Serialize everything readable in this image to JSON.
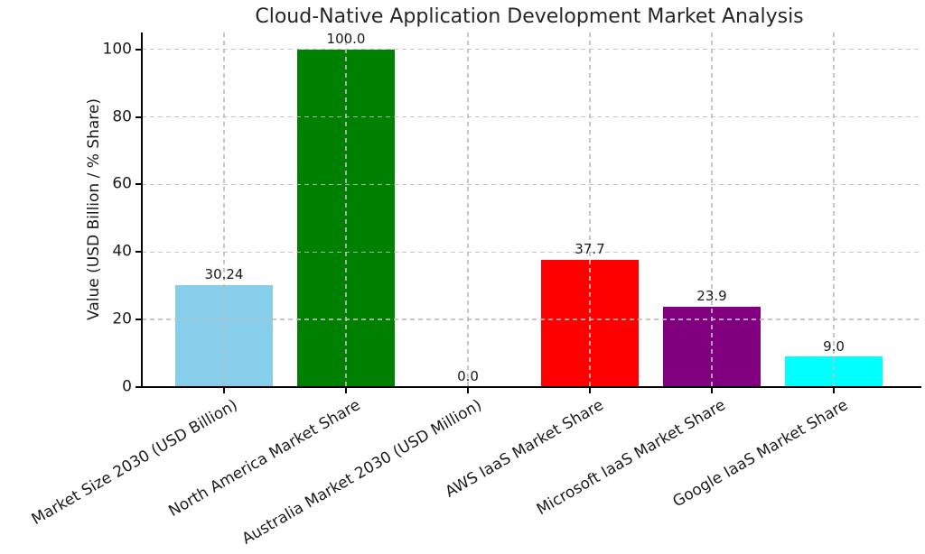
{
  "chart_data": {
    "type": "bar",
    "title": "Cloud-Native Application Development Market Analysis",
    "ylabel": "Value (USD Billion / % Share)",
    "xlabel": "",
    "categories": [
      "Market Size 2030 (USD Billion)",
      "North America Market Share",
      "Australia Market 2030 (USD Million)",
      "AWS IaaS Market Share",
      "Microsoft IaaS Market Share",
      "Google IaaS Market Share"
    ],
    "values": [
      30.24,
      100.0,
      0.0,
      37.7,
      23.9,
      9.0
    ],
    "bar_labels": [
      "30.24",
      "100.0",
      "0.0",
      "37.7",
      "23.9",
      "9.0"
    ],
    "bar_colors": [
      "#87CEEB",
      "#008000",
      null,
      "#FF0000",
      "#800080",
      "#00FFFF"
    ],
    "yticks": [
      0,
      20,
      40,
      60,
      80,
      100
    ],
    "ytick_labels": [
      "0",
      "20",
      "40",
      "60",
      "80",
      "100"
    ],
    "ylim": [
      0,
      105
    ],
    "grid": {
      "visible": true,
      "style": "dashed",
      "color": "#c8c8c8",
      "over_bars": true
    },
    "legend_position": "none",
    "x_tick_rotation_deg": 30,
    "background": "#ffffff"
  }
}
